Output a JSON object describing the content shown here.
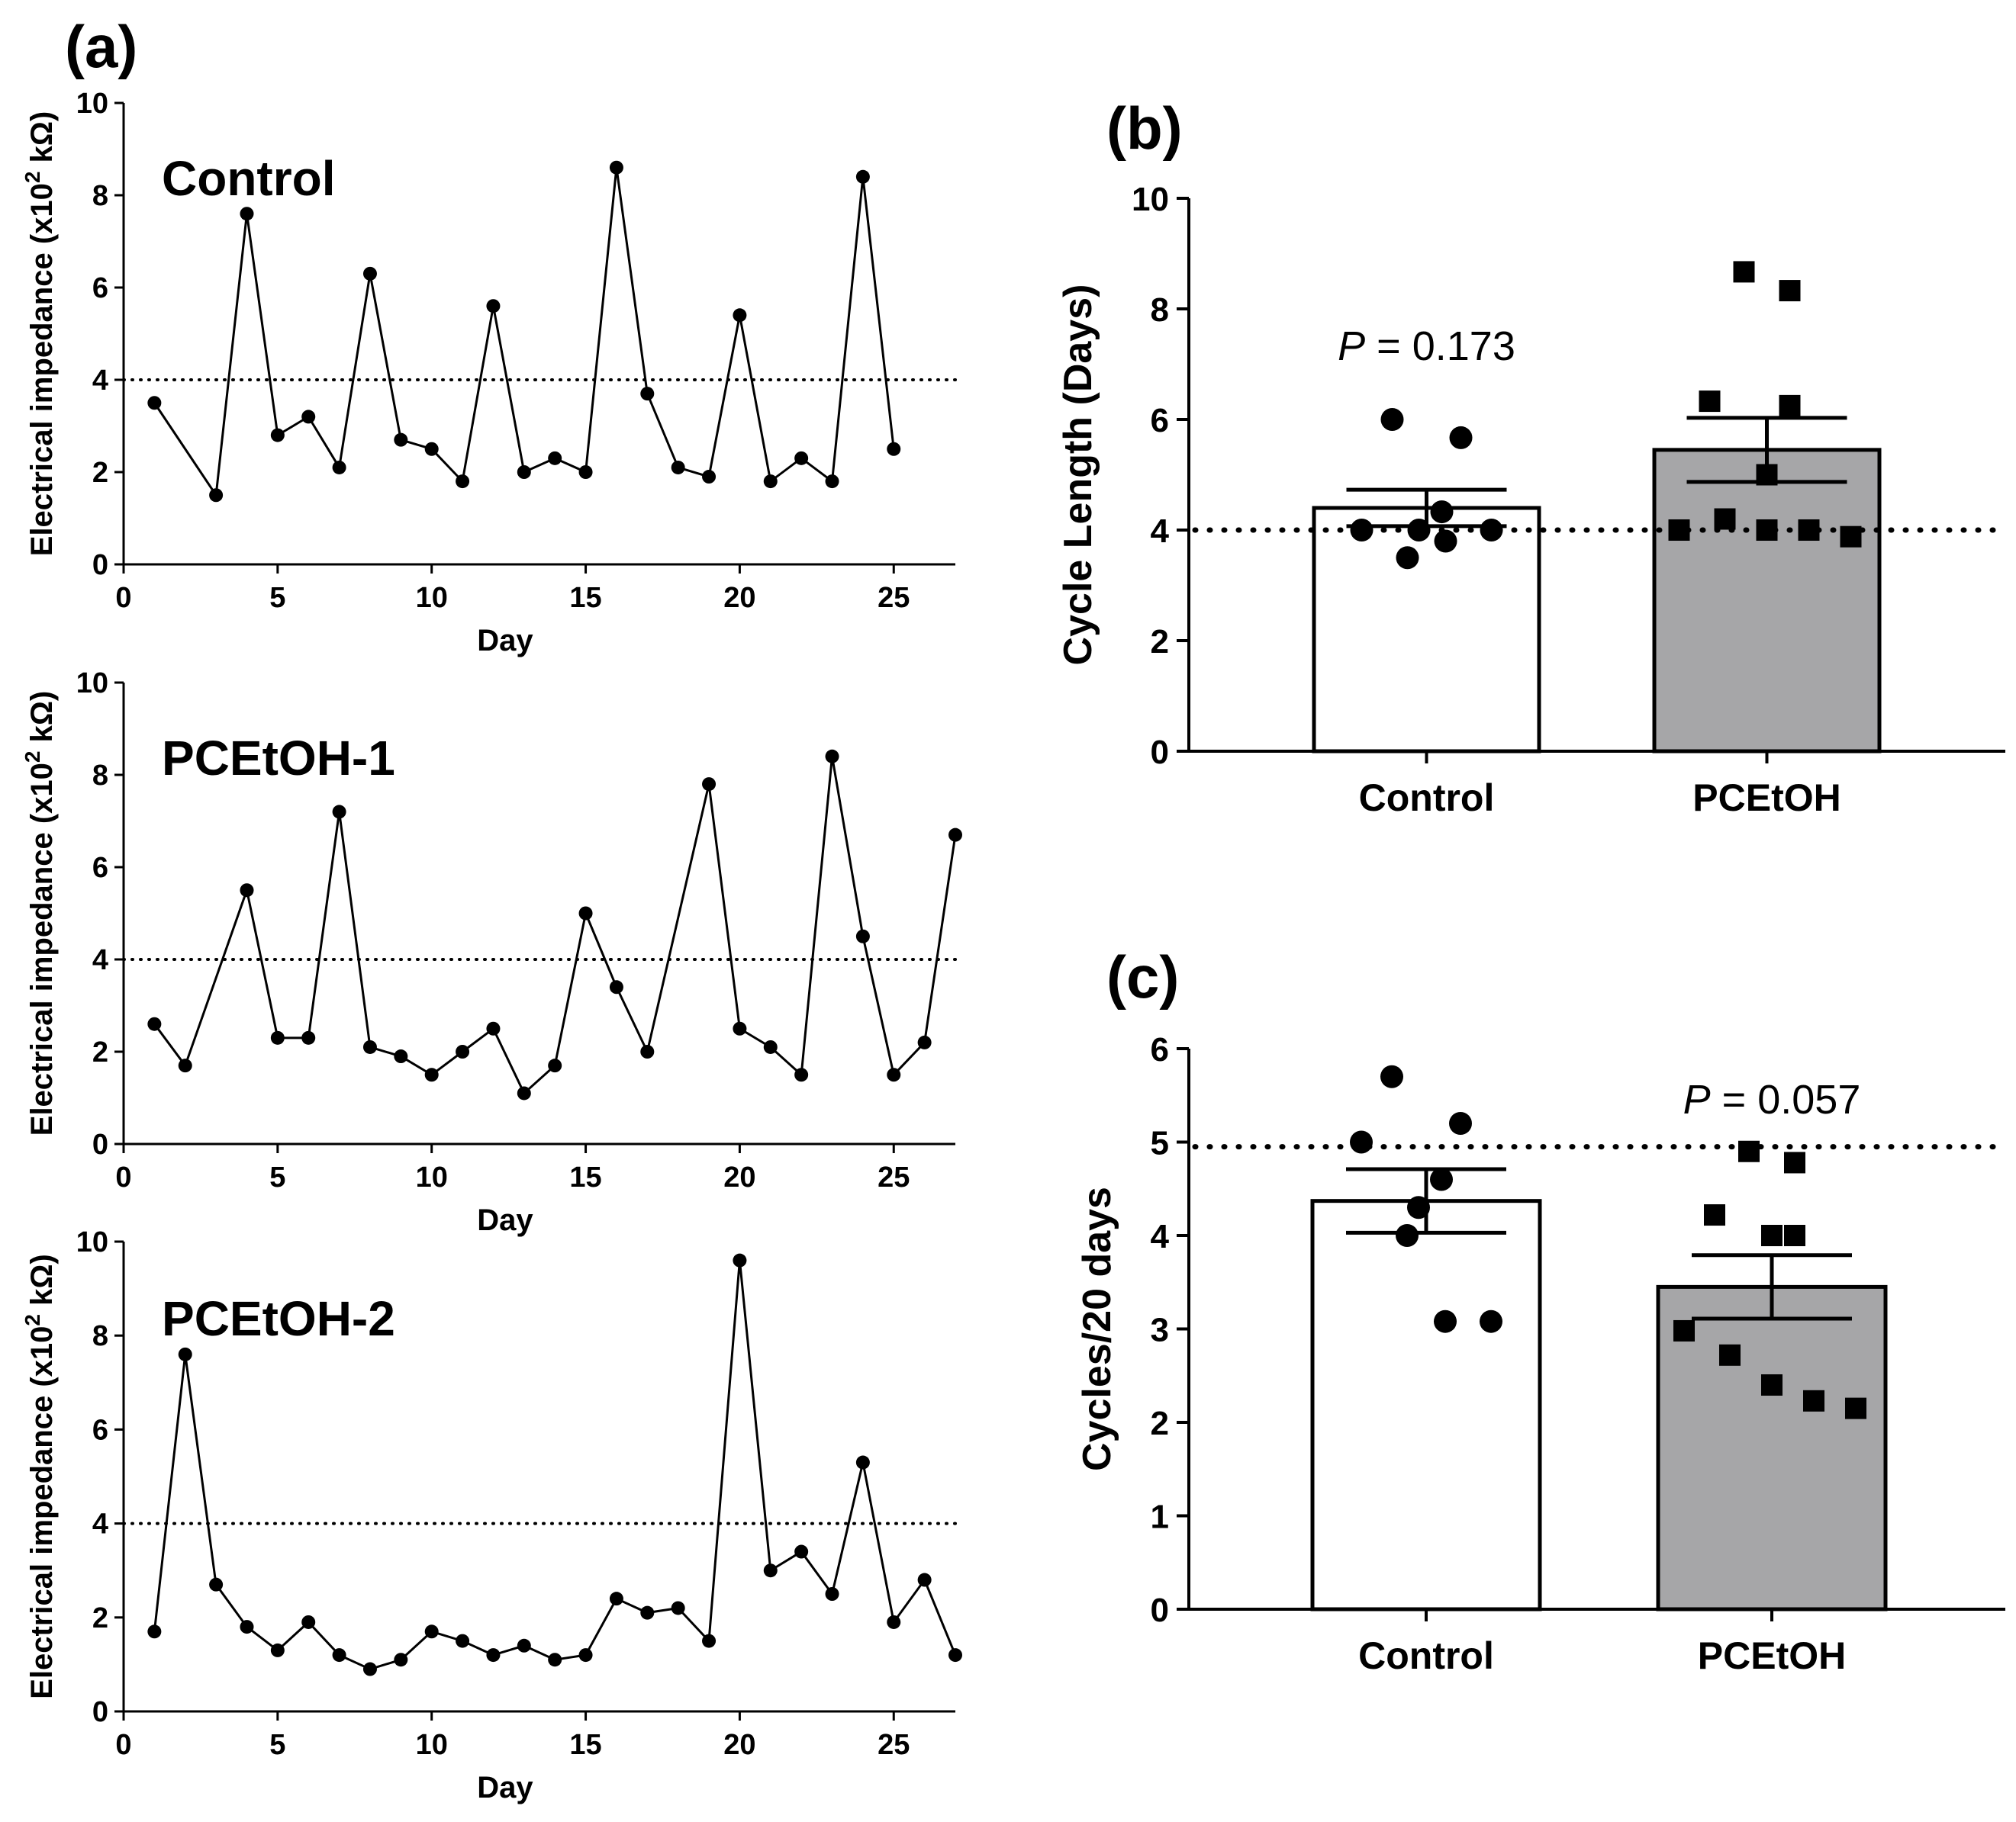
{
  "panel_labels": {
    "a": "(a)",
    "b": "(b)",
    "c": "(c)"
  },
  "p_label": "P",
  "chart_data": [
    {
      "id": "a1",
      "type": "line",
      "title": "Control",
      "xlabel": "Day",
      "ylabel": "Electrical impedance (x10",
      "ylabel_sup": "2",
      "ylabel_unit": " kΩ)",
      "xlim": [
        0,
        27
      ],
      "ylim": [
        0,
        10
      ],
      "xticks": [
        0,
        5,
        10,
        15,
        20,
        25
      ],
      "yticks": [
        0,
        2,
        4,
        6,
        8,
        10
      ],
      "reference_line": 4,
      "x": [
        1,
        3,
        4,
        5,
        6,
        7,
        8,
        9,
        10,
        11,
        12,
        13,
        14,
        15,
        16,
        17,
        18,
        19,
        20,
        21,
        22,
        23,
        24,
        25
      ],
      "y": [
        3.5,
        1.5,
        7.6,
        2.8,
        3.2,
        2.1,
        6.3,
        2.7,
        2.5,
        1.8,
        5.6,
        2.0,
        2.3,
        2.0,
        8.6,
        3.7,
        2.1,
        1.9,
        5.4,
        1.8,
        2.3,
        1.8,
        8.4,
        2.5
      ]
    },
    {
      "id": "a2",
      "type": "line",
      "title": "PCEtOH-1",
      "xlabel": "Day",
      "ylabel": "Electrical impedance (x10",
      "ylabel_sup": "2",
      "ylabel_unit": " kΩ)",
      "xlim": [
        0,
        27
      ],
      "ylim": [
        0,
        10
      ],
      "xticks": [
        0,
        5,
        10,
        15,
        20,
        25
      ],
      "yticks": [
        0,
        2,
        4,
        6,
        8,
        10
      ],
      "reference_line": 4,
      "x": [
        1,
        2,
        4,
        5,
        6,
        7,
        8,
        9,
        10,
        11,
        12,
        13,
        14,
        15,
        16,
        17,
        19,
        20,
        21,
        22,
        23,
        24,
        25,
        26,
        27
      ],
      "y": [
        2.6,
        1.7,
        5.5,
        2.3,
        2.3,
        7.2,
        2.1,
        1.9,
        1.5,
        2.0,
        2.5,
        1.1,
        1.7,
        5.0,
        3.4,
        2.0,
        7.8,
        2.5,
        2.1,
        1.5,
        8.4,
        4.5,
        1.5,
        2.2,
        6.7
      ]
    },
    {
      "id": "a3",
      "type": "line",
      "title": "PCEtOH-2",
      "xlabel": "Day",
      "ylabel": "Electrical impedance (x10",
      "ylabel_sup": "2",
      "ylabel_unit": " kΩ)",
      "xlim": [
        0,
        27
      ],
      "ylim": [
        0,
        10
      ],
      "xticks": [
        0,
        5,
        10,
        15,
        20,
        25
      ],
      "yticks": [
        0,
        2,
        4,
        6,
        8,
        10
      ],
      "reference_line": 4,
      "x": [
        1,
        2,
        3,
        4,
        5,
        6,
        7,
        8,
        9,
        10,
        11,
        12,
        13,
        14,
        15,
        16,
        17,
        18,
        19,
        20,
        21,
        22,
        23,
        24,
        25,
        26,
        27
      ],
      "y": [
        1.7,
        7.6,
        2.7,
        1.8,
        1.3,
        1.9,
        1.2,
        0.9,
        1.1,
        1.7,
        1.5,
        1.2,
        1.4,
        1.1,
        1.2,
        2.4,
        2.1,
        2.2,
        1.5,
        9.6,
        3.0,
        3.4,
        2.5,
        5.3,
        1.9,
        2.8,
        1.2
      ]
    },
    {
      "id": "b",
      "type": "bar",
      "ylabel": "Cycle Length (Days)",
      "categories": [
        "Control",
        "PCEtOH"
      ],
      "values": [
        4.4,
        5.45
      ],
      "sem": [
        0.33,
        0.58
      ],
      "ylim": [
        0,
        10
      ],
      "yticks": [
        0,
        2,
        4,
        6,
        8,
        10
      ],
      "reference_line": 4,
      "p_value_text": " = 0.173",
      "p_value_over": "Control",
      "points": [
        [
          6.0,
          5.67,
          4.0,
          4.33,
          4.0,
          3.5,
          3.8,
          4.0
        ],
        [
          8.67,
          8.33,
          6.33,
          6.25,
          5.0,
          4.0,
          4.2,
          4.0,
          4.0,
          3.88
        ]
      ]
    },
    {
      "id": "c",
      "type": "bar",
      "ylabel": "Cycles/20 days",
      "categories": [
        "Control",
        "PCEtOH"
      ],
      "values": [
        4.37,
        3.45
      ],
      "sem": [
        0.34,
        0.34
      ],
      "ylim": [
        0,
        6
      ],
      "yticks": [
        0,
        1,
        2,
        3,
        4,
        5,
        6
      ],
      "reference_line": 4.95,
      "p_value_text": " = 0.057",
      "p_value_over": "PCEtOH",
      "points": [
        [
          5.7,
          5.2,
          5.0,
          4.6,
          4.3,
          4.0,
          3.08,
          3.08
        ],
        [
          4.9,
          4.78,
          4.22,
          4.0,
          4.0,
          2.98,
          2.72,
          2.4,
          2.23,
          2.15
        ]
      ]
    }
  ]
}
